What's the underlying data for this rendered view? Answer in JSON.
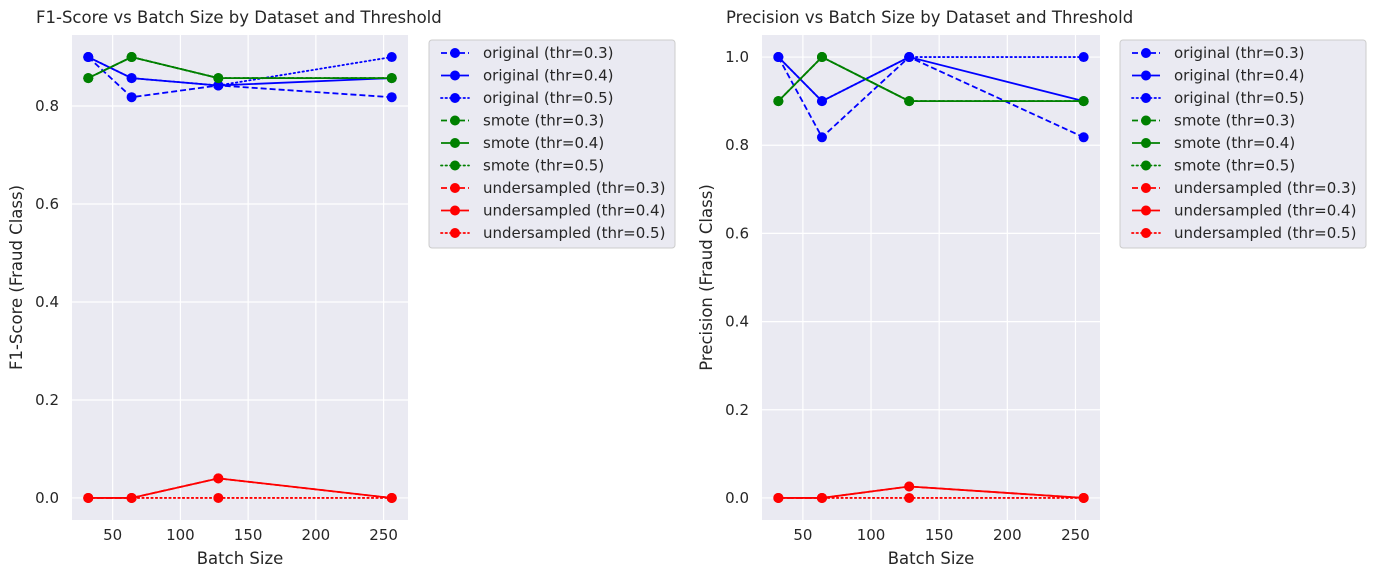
{
  "colors": {
    "axes_bg": "#eaeaf2",
    "grid": "#ffffff",
    "text": "#262626",
    "legend_bg": "#eaeaf2",
    "legend_border": "#cccccc"
  },
  "line_styles": {
    "thr=0.3": "dashed",
    "thr=0.4": "solid",
    "thr=0.5": "dotted"
  },
  "chart_data": [
    {
      "type": "line",
      "title": "F1-Score vs Batch Size by Dataset and Threshold",
      "xlabel": "Batch Size",
      "ylabel": "F1-Score (Fraud Class)",
      "x": [
        32,
        64,
        128,
        256
      ],
      "xlim": [
        20,
        268
      ],
      "ylim": [
        -0.045,
        0.945
      ],
      "xticks": [
        50,
        100,
        150,
        200,
        250
      ],
      "yticks": [
        0.0,
        0.2,
        0.4,
        0.6,
        0.8
      ],
      "xtick_labels": [
        "50",
        "100",
        "150",
        "200",
        "250"
      ],
      "ytick_labels": [
        "0.0",
        "0.2",
        "0.4",
        "0.6",
        "0.8"
      ],
      "grid": true,
      "legend_position": "outside-right",
      "series": [
        {
          "name": "original (thr=0.3)",
          "color": "#0000ff",
          "style": "dashed",
          "values": [
            0.9,
            0.818,
            0.842,
            0.818
          ]
        },
        {
          "name": "original (thr=0.4)",
          "color": "#0000ff",
          "style": "solid",
          "values": [
            0.9,
            0.857,
            0.842,
            0.857
          ]
        },
        {
          "name": "original (thr=0.5)",
          "color": "#0000ff",
          "style": "dotted",
          "values": [
            0.9,
            0.857,
            0.842,
            0.9
          ]
        },
        {
          "name": "smote (thr=0.3)",
          "color": "#008000",
          "style": "dashed",
          "values": [
            0.857,
            0.9,
            0.857,
            0.857
          ]
        },
        {
          "name": "smote (thr=0.4)",
          "color": "#008000",
          "style": "solid",
          "values": [
            0.857,
            0.9,
            0.857,
            0.857
          ]
        },
        {
          "name": "smote (thr=0.5)",
          "color": "#008000",
          "style": "dotted",
          "values": [
            0.857,
            0.9,
            0.857,
            0.857
          ]
        },
        {
          "name": "undersampled (thr=0.3)",
          "color": "#ff0000",
          "style": "dashed",
          "values": [
            0.0,
            0.0,
            0.04,
            0.0
          ]
        },
        {
          "name": "undersampled (thr=0.4)",
          "color": "#ff0000",
          "style": "solid",
          "values": [
            0.0,
            0.0,
            0.04,
            0.0
          ]
        },
        {
          "name": "undersampled (thr=0.5)",
          "color": "#ff0000",
          "style": "dotted",
          "values": [
            0.0,
            0.0,
            0.0,
            0.0
          ]
        }
      ]
    },
    {
      "type": "line",
      "title": "Precision vs Batch Size by Dataset and Threshold",
      "xlabel": "Batch Size",
      "ylabel": "Precision (Fraud Class)",
      "x": [
        32,
        64,
        128,
        256
      ],
      "xlim": [
        20,
        268
      ],
      "ylim": [
        -0.05,
        1.05
      ],
      "xticks": [
        50,
        100,
        150,
        200,
        250
      ],
      "yticks": [
        0.0,
        0.2,
        0.4,
        0.6,
        0.8,
        1.0
      ],
      "xtick_labels": [
        "50",
        "100",
        "150",
        "200",
        "250"
      ],
      "ytick_labels": [
        "0.0",
        "0.2",
        "0.4",
        "0.6",
        "0.8",
        "1.0"
      ],
      "grid": true,
      "legend_position": "outside-right",
      "series": [
        {
          "name": "original (thr=0.3)",
          "color": "#0000ff",
          "style": "dashed",
          "values": [
            1.0,
            0.818,
            1.0,
            0.818
          ]
        },
        {
          "name": "original (thr=0.4)",
          "color": "#0000ff",
          "style": "solid",
          "values": [
            1.0,
            0.9,
            1.0,
            0.9
          ]
        },
        {
          "name": "original (thr=0.5)",
          "color": "#0000ff",
          "style": "dotted",
          "values": [
            1.0,
            0.9,
            1.0,
            1.0
          ]
        },
        {
          "name": "smote (thr=0.3)",
          "color": "#008000",
          "style": "dashed",
          "values": [
            0.9,
            1.0,
            0.9,
            0.9
          ]
        },
        {
          "name": "smote (thr=0.4)",
          "color": "#008000",
          "style": "solid",
          "values": [
            0.9,
            1.0,
            0.9,
            0.9
          ]
        },
        {
          "name": "smote (thr=0.5)",
          "color": "#008000",
          "style": "dotted",
          "values": [
            0.9,
            1.0,
            0.9,
            0.9
          ]
        },
        {
          "name": "undersampled (thr=0.3)",
          "color": "#ff0000",
          "style": "dashed",
          "values": [
            0.0,
            0.0,
            0.026,
            0.0
          ]
        },
        {
          "name": "undersampled (thr=0.4)",
          "color": "#ff0000",
          "style": "solid",
          "values": [
            0.0,
            0.0,
            0.026,
            0.0
          ]
        },
        {
          "name": "undersampled (thr=0.5)",
          "color": "#ff0000",
          "style": "dotted",
          "values": [
            0.0,
            0.0,
            0.0,
            0.0
          ]
        }
      ]
    }
  ]
}
